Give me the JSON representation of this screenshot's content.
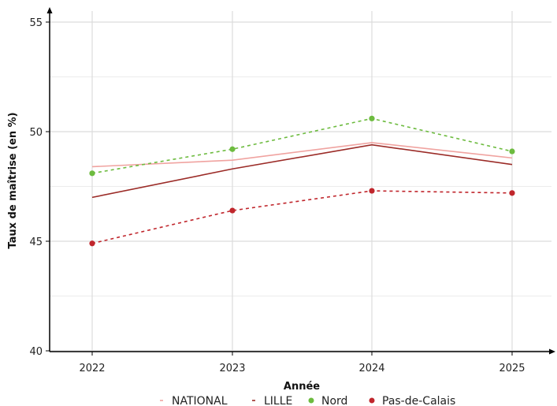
{
  "chart_data": {
    "type": "line",
    "xlabel": "Année",
    "ylabel": "Taux de maîtrise (en %)",
    "categories": [
      "2022",
      "2023",
      "2024",
      "2025"
    ],
    "ylim": [
      40,
      55
    ],
    "yticks": [
      40,
      45,
      50,
      55
    ],
    "grid": true,
    "legend_position": "bottom",
    "series": [
      {
        "name": "NATIONAL",
        "values": [
          48.4,
          48.7,
          49.5,
          48.8
        ],
        "color": "#f0a3a0",
        "style": "solid",
        "markers": false
      },
      {
        "name": "LILLE",
        "values": [
          47.0,
          48.3,
          49.4,
          48.5
        ],
        "color": "#9b2b27",
        "style": "solid",
        "markers": false
      },
      {
        "name": "Nord",
        "values": [
          48.1,
          49.2,
          50.6,
          49.1
        ],
        "color": "#6dbb3f",
        "style": "dashed",
        "markers": true
      },
      {
        "name": "Pas-de-Calais",
        "values": [
          44.9,
          46.4,
          47.3,
          47.2
        ],
        "color": "#c0262c",
        "style": "dashed",
        "markers": true
      }
    ]
  }
}
